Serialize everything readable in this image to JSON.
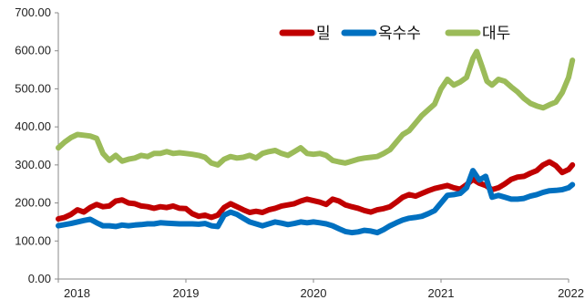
{
  "chart_data": {
    "type": "line",
    "xlim": [
      2018,
      2022
    ],
    "ylim": [
      0,
      700
    ],
    "x_ticks": [
      "2018",
      "2019",
      "2020",
      "2021",
      "2022"
    ],
    "y_ticks": [
      "0.00",
      "100.00",
      "200.00",
      "300.00",
      "400.00",
      "500.00",
      "600.00",
      "700.00"
    ],
    "legend_position": "top-right",
    "grid": false,
    "series": [
      {
        "name": "밀",
        "color": "#c00000",
        "points": [
          [
            2018.0,
            158
          ],
          [
            2018.05,
            162
          ],
          [
            2018.1,
            170
          ],
          [
            2018.15,
            182
          ],
          [
            2018.2,
            176
          ],
          [
            2018.25,
            188
          ],
          [
            2018.3,
            196
          ],
          [
            2018.35,
            190
          ],
          [
            2018.4,
            192
          ],
          [
            2018.45,
            205
          ],
          [
            2018.5,
            208
          ],
          [
            2018.55,
            200
          ],
          [
            2018.6,
            198
          ],
          [
            2018.65,
            192
          ],
          [
            2018.7,
            190
          ],
          [
            2018.75,
            186
          ],
          [
            2018.8,
            190
          ],
          [
            2018.85,
            188
          ],
          [
            2018.9,
            192
          ],
          [
            2018.95,
            186
          ],
          [
            2019.0,
            185
          ],
          [
            2019.05,
            172
          ],
          [
            2019.1,
            165
          ],
          [
            2019.15,
            168
          ],
          [
            2019.2,
            162
          ],
          [
            2019.25,
            168
          ],
          [
            2019.3,
            188
          ],
          [
            2019.35,
            198
          ],
          [
            2019.4,
            190
          ],
          [
            2019.45,
            182
          ],
          [
            2019.5,
            175
          ],
          [
            2019.55,
            178
          ],
          [
            2019.6,
            175
          ],
          [
            2019.65,
            182
          ],
          [
            2019.7,
            186
          ],
          [
            2019.75,
            192
          ],
          [
            2019.8,
            195
          ],
          [
            2019.85,
            198
          ],
          [
            2019.9,
            205
          ],
          [
            2019.95,
            210
          ],
          [
            2020.0,
            206
          ],
          [
            2020.05,
            202
          ],
          [
            2020.1,
            196
          ],
          [
            2020.15,
            210
          ],
          [
            2020.2,
            205
          ],
          [
            2020.25,
            195
          ],
          [
            2020.3,
            190
          ],
          [
            2020.35,
            186
          ],
          [
            2020.4,
            180
          ],
          [
            2020.45,
            176
          ],
          [
            2020.5,
            182
          ],
          [
            2020.55,
            185
          ],
          [
            2020.6,
            190
          ],
          [
            2020.65,
            202
          ],
          [
            2020.7,
            215
          ],
          [
            2020.75,
            222
          ],
          [
            2020.8,
            218
          ],
          [
            2020.85,
            225
          ],
          [
            2020.9,
            232
          ],
          [
            2020.95,
            238
          ],
          [
            2021.0,
            242
          ],
          [
            2021.05,
            246
          ],
          [
            2021.1,
            240
          ],
          [
            2021.15,
            236
          ],
          [
            2021.2,
            248
          ],
          [
            2021.25,
            262
          ],
          [
            2021.3,
            252
          ],
          [
            2021.35,
            246
          ],
          [
            2021.4,
            235
          ],
          [
            2021.45,
            240
          ],
          [
            2021.5,
            250
          ],
          [
            2021.55,
            262
          ],
          [
            2021.6,
            268
          ],
          [
            2021.65,
            270
          ],
          [
            2021.7,
            278
          ],
          [
            2021.75,
            285
          ],
          [
            2021.8,
            300
          ],
          [
            2021.85,
            308
          ],
          [
            2021.9,
            298
          ],
          [
            2021.95,
            280
          ],
          [
            2022.0,
            288
          ],
          [
            2022.03,
            300
          ]
        ]
      },
      {
        "name": "옥수수",
        "color": "#0070c0",
        "points": [
          [
            2018.0,
            140
          ],
          [
            2018.05,
            143
          ],
          [
            2018.1,
            146
          ],
          [
            2018.15,
            150
          ],
          [
            2018.2,
            154
          ],
          [
            2018.25,
            157
          ],
          [
            2018.3,
            148
          ],
          [
            2018.35,
            140
          ],
          [
            2018.4,
            140
          ],
          [
            2018.45,
            138
          ],
          [
            2018.5,
            142
          ],
          [
            2018.55,
            140
          ],
          [
            2018.6,
            142
          ],
          [
            2018.65,
            143
          ],
          [
            2018.7,
            145
          ],
          [
            2018.75,
            145
          ],
          [
            2018.8,
            148
          ],
          [
            2018.85,
            147
          ],
          [
            2018.9,
            146
          ],
          [
            2018.95,
            145
          ],
          [
            2019.0,
            145
          ],
          [
            2019.05,
            145
          ],
          [
            2019.1,
            144
          ],
          [
            2019.15,
            146
          ],
          [
            2019.2,
            140
          ],
          [
            2019.25,
            138
          ],
          [
            2019.3,
            168
          ],
          [
            2019.35,
            176
          ],
          [
            2019.4,
            170
          ],
          [
            2019.45,
            160
          ],
          [
            2019.5,
            150
          ],
          [
            2019.55,
            145
          ],
          [
            2019.6,
            140
          ],
          [
            2019.65,
            145
          ],
          [
            2019.7,
            150
          ],
          [
            2019.75,
            147
          ],
          [
            2019.8,
            143
          ],
          [
            2019.85,
            146
          ],
          [
            2019.9,
            150
          ],
          [
            2019.95,
            148
          ],
          [
            2020.0,
            150
          ],
          [
            2020.05,
            148
          ],
          [
            2020.1,
            145
          ],
          [
            2020.15,
            140
          ],
          [
            2020.2,
            132
          ],
          [
            2020.25,
            125
          ],
          [
            2020.3,
            122
          ],
          [
            2020.35,
            124
          ],
          [
            2020.4,
            128
          ],
          [
            2020.45,
            126
          ],
          [
            2020.5,
            122
          ],
          [
            2020.55,
            130
          ],
          [
            2020.6,
            140
          ],
          [
            2020.65,
            148
          ],
          [
            2020.7,
            155
          ],
          [
            2020.75,
            160
          ],
          [
            2020.8,
            162
          ],
          [
            2020.85,
            165
          ],
          [
            2020.9,
            172
          ],
          [
            2020.95,
            180
          ],
          [
            2021.0,
            200
          ],
          [
            2021.05,
            220
          ],
          [
            2021.1,
            222
          ],
          [
            2021.15,
            225
          ],
          [
            2021.2,
            240
          ],
          [
            2021.25,
            285
          ],
          [
            2021.3,
            260
          ],
          [
            2021.35,
            270
          ],
          [
            2021.4,
            215
          ],
          [
            2021.45,
            220
          ],
          [
            2021.5,
            215
          ],
          [
            2021.55,
            210
          ],
          [
            2021.6,
            210
          ],
          [
            2021.65,
            212
          ],
          [
            2021.7,
            218
          ],
          [
            2021.75,
            222
          ],
          [
            2021.8,
            228
          ],
          [
            2021.85,
            232
          ],
          [
            2021.9,
            233
          ],
          [
            2021.95,
            235
          ],
          [
            2022.0,
            240
          ],
          [
            2022.03,
            248
          ]
        ]
      },
      {
        "name": "대두",
        "color": "#9bbb59",
        "points": [
          [
            2018.0,
            345
          ],
          [
            2018.05,
            360
          ],
          [
            2018.1,
            372
          ],
          [
            2018.15,
            380
          ],
          [
            2018.2,
            378
          ],
          [
            2018.25,
            376
          ],
          [
            2018.3,
            370
          ],
          [
            2018.35,
            330
          ],
          [
            2018.4,
            312
          ],
          [
            2018.45,
            325
          ],
          [
            2018.5,
            310
          ],
          [
            2018.55,
            315
          ],
          [
            2018.6,
            318
          ],
          [
            2018.65,
            325
          ],
          [
            2018.7,
            322
          ],
          [
            2018.75,
            330
          ],
          [
            2018.8,
            330
          ],
          [
            2018.85,
            335
          ],
          [
            2018.9,
            330
          ],
          [
            2018.95,
            332
          ],
          [
            2019.0,
            330
          ],
          [
            2019.05,
            328
          ],
          [
            2019.1,
            325
          ],
          [
            2019.15,
            320
          ],
          [
            2019.2,
            305
          ],
          [
            2019.25,
            300
          ],
          [
            2019.3,
            315
          ],
          [
            2019.35,
            322
          ],
          [
            2019.4,
            318
          ],
          [
            2019.45,
            320
          ],
          [
            2019.5,
            325
          ],
          [
            2019.55,
            318
          ],
          [
            2019.6,
            330
          ],
          [
            2019.65,
            335
          ],
          [
            2019.7,
            338
          ],
          [
            2019.75,
            330
          ],
          [
            2019.8,
            325
          ],
          [
            2019.85,
            335
          ],
          [
            2019.9,
            345
          ],
          [
            2019.95,
            330
          ],
          [
            2020.0,
            328
          ],
          [
            2020.05,
            330
          ],
          [
            2020.1,
            325
          ],
          [
            2020.15,
            312
          ],
          [
            2020.2,
            308
          ],
          [
            2020.25,
            305
          ],
          [
            2020.3,
            310
          ],
          [
            2020.35,
            315
          ],
          [
            2020.4,
            318
          ],
          [
            2020.45,
            320
          ],
          [
            2020.5,
            322
          ],
          [
            2020.55,
            330
          ],
          [
            2020.6,
            340
          ],
          [
            2020.65,
            360
          ],
          [
            2020.7,
            380
          ],
          [
            2020.75,
            390
          ],
          [
            2020.8,
            410
          ],
          [
            2020.85,
            430
          ],
          [
            2020.9,
            445
          ],
          [
            2020.95,
            460
          ],
          [
            2021.0,
            500
          ],
          [
            2021.05,
            525
          ],
          [
            2021.1,
            510
          ],
          [
            2021.15,
            518
          ],
          [
            2021.2,
            530
          ],
          [
            2021.25,
            580
          ],
          [
            2021.28,
            598
          ],
          [
            2021.32,
            560
          ],
          [
            2021.36,
            520
          ],
          [
            2021.4,
            510
          ],
          [
            2021.45,
            525
          ],
          [
            2021.5,
            520
          ],
          [
            2021.55,
            505
          ],
          [
            2021.6,
            492
          ],
          [
            2021.65,
            475
          ],
          [
            2021.7,
            462
          ],
          [
            2021.75,
            455
          ],
          [
            2021.8,
            450
          ],
          [
            2021.85,
            458
          ],
          [
            2021.9,
            465
          ],
          [
            2021.95,
            490
          ],
          [
            2022.0,
            530
          ],
          [
            2022.03,
            575
          ]
        ]
      }
    ]
  }
}
